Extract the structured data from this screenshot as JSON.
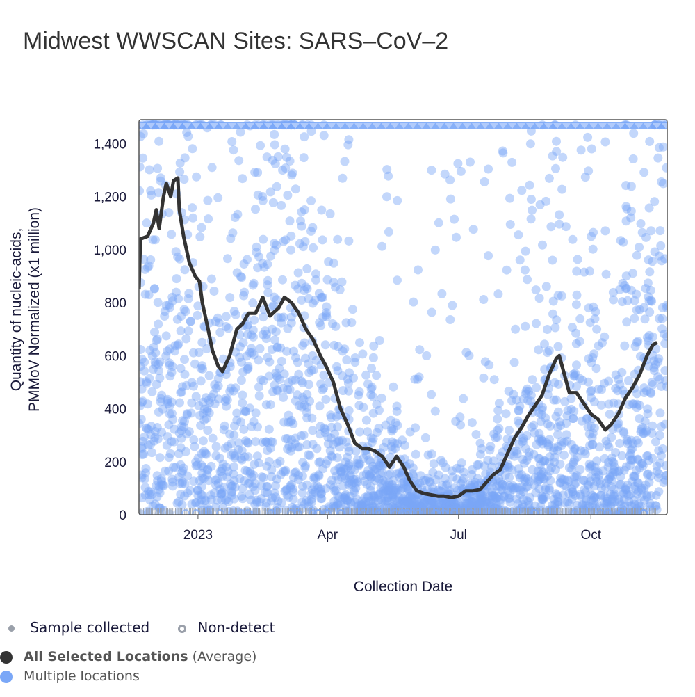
{
  "chart_data": {
    "type": "scatter",
    "title": "Midwest WWSCAN Sites: SARS–CoV–2",
    "xlabel": "Collection Date",
    "ylabel_lines": [
      "Quantity of nucleic-acids,",
      "PMMoV Normalized (x1 million)"
    ],
    "x_units": "days since 2023-01-01",
    "xlim": [
      -41,
      326
    ],
    "ylim": [
      0,
      1490
    ],
    "x_ticks": [
      {
        "value": 0,
        "label": "2023"
      },
      {
        "value": 90,
        "label": "Apr"
      },
      {
        "value": 181,
        "label": "Jul"
      },
      {
        "value": 273,
        "label": "Oct"
      }
    ],
    "y_ticks": [
      {
        "value": 0,
        "label": "0"
      },
      {
        "value": 200,
        "label": "200"
      },
      {
        "value": 400,
        "label": "400"
      },
      {
        "value": 600,
        "label": "600"
      },
      {
        "value": 800,
        "label": "800"
      },
      {
        "value": 1000,
        "label": "1,000"
      },
      {
        "value": 1200,
        "label": "1,200"
      },
      {
        "value": 1400,
        "label": "1,400"
      }
    ],
    "grid": false,
    "series": [
      {
        "name": "All Selected Locations (Average)",
        "kind": "line",
        "color": "#333333",
        "x": [
          -41,
          -40,
          -35,
          -31,
          -29,
          -27,
          -24,
          -22,
          -19,
          -17,
          -14,
          -13,
          -10,
          -6,
          -2,
          1,
          3,
          7,
          10,
          14,
          17,
          22,
          27,
          31,
          35,
          40,
          45,
          50,
          56,
          60,
          65,
          70,
          75,
          80,
          85,
          89,
          94,
          99,
          104,
          109,
          114,
          118,
          123,
          128,
          133,
          138,
          143,
          147,
          152,
          157,
          162,
          167,
          171,
          176,
          181,
          186,
          191,
          196,
          200,
          205,
          210,
          215,
          220,
          225,
          229,
          234,
          239,
          244,
          249,
          251,
          255,
          258,
          263,
          268,
          273,
          278,
          283,
          287,
          292,
          297,
          302,
          307,
          312,
          316,
          319
        ],
        "y": [
          850,
          1040,
          1050,
          1100,
          1150,
          1080,
          1200,
          1250,
          1200,
          1260,
          1270,
          1150,
          1050,
          950,
          900,
          880,
          800,
          700,
          620,
          560,
          540,
          600,
          700,
          720,
          760,
          760,
          820,
          750,
          780,
          820,
          800,
          760,
          700,
          660,
          600,
          560,
          500,
          400,
          340,
          270,
          250,
          250,
          240,
          220,
          180,
          220,
          180,
          130,
          90,
          80,
          75,
          70,
          70,
          65,
          70,
          90,
          90,
          95,
          120,
          150,
          170,
          230,
          290,
          330,
          370,
          410,
          450,
          530,
          590,
          600,
          520,
          460,
          460,
          420,
          380,
          360,
          320,
          340,
          380,
          440,
          480,
          530,
          600,
          640,
          650
        ]
      },
      {
        "name": "Multiple locations",
        "kind": "scatter",
        "color": "#7aa7f7"
      }
    ],
    "legend": {
      "marker_items": [
        {
          "label": "Sample collected"
        },
        {
          "label": "Non-detect"
        }
      ],
      "series_items": [
        {
          "bold": "All Selected Locations",
          "suffix": "(Average)"
        },
        {
          "label": "Multiple locations"
        }
      ]
    }
  }
}
